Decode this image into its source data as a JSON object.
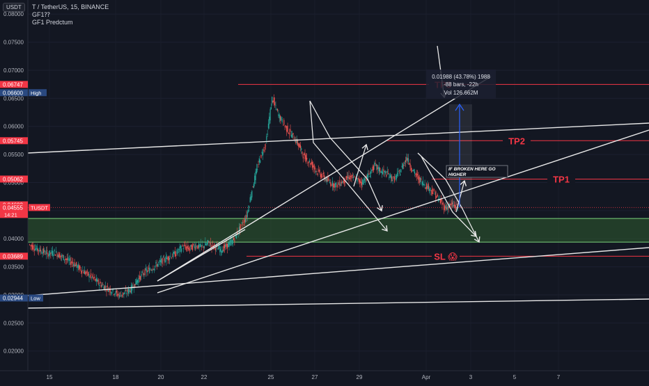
{
  "header": {
    "currency": "USDT",
    "symbol_line": "T / TetherUS, 15, BINANCE",
    "indicator1": "GF1⁇",
    "indicator2": "GF1 Predctum"
  },
  "colors": {
    "background": "#131722",
    "up": "#26a69a",
    "down": "#ef5350",
    "red_line": "#f23645",
    "green_zone": "#2f5d2f",
    "green_border": "#7bd37b",
    "white_line": "#e8e8e8",
    "blue_arrow": "#2962ff",
    "blue_label": "#2a4980"
  },
  "chart_data": {
    "type": "candlestick",
    "price_axis": {
      "ticks": [
        "0.08000",
        "0.07500",
        "0.07000",
        "0.06500",
        "0.06000",
        "0.05500",
        "0.05000",
        "0.04500",
        "0.04000",
        "0.03500",
        "0.03000",
        "0.02500",
        "0.02000"
      ],
      "range": [
        0.0165,
        0.0825
      ]
    },
    "time_axis": {
      "ticks": [
        "15",
        "18",
        "20",
        "22",
        "25",
        "27",
        "29",
        "Apr",
        "3",
        "5",
        "7"
      ],
      "range": [
        "Mar 14 12:00",
        "Apr 8 12:00"
      ]
    },
    "price_labels": [
      {
        "value": "0.06747",
        "kind": "red"
      },
      {
        "value": "0.06600",
        "kind": "blue",
        "tag": "High"
      },
      {
        "value": "0.05745",
        "kind": "red"
      },
      {
        "value": "0.05062",
        "kind": "red"
      },
      {
        "value": "0.04603",
        "kind": "red"
      },
      {
        "value": "0.04555",
        "kind": "red",
        "tag": "TUSDT",
        "sub": "14:21"
      },
      {
        "value": "0.03689",
        "kind": "red"
      },
      {
        "value": "0.02944",
        "kind": "blue",
        "tag": "Low"
      }
    ],
    "levels": [
      {
        "label": "TP3",
        "price": 0.06747
      },
      {
        "label": "TP2",
        "price": 0.05745
      },
      {
        "label": "TP1",
        "price": 0.05062
      },
      {
        "label": "SL 😱",
        "price": 0.03689
      }
    ],
    "demand_zone": {
      "top": 0.0436,
      "bottom": 0.0394
    },
    "annotation": "IF BROKEN HERE GO HIGHER",
    "measure": {
      "line1": "0.01988 (43.78%) 1988",
      "line2": "-88 bars, -22h",
      "line3": "Vol 126.662M"
    },
    "price_path": [
      [
        0,
        0.039
      ],
      [
        1,
        0.0383
      ],
      [
        2,
        0.0378
      ],
      [
        3,
        0.0373
      ],
      [
        4,
        0.0376
      ],
      [
        5,
        0.0369
      ],
      [
        6,
        0.0362
      ],
      [
        7,
        0.0356
      ],
      [
        8,
        0.0346
      ],
      [
        9,
        0.0338
      ],
      [
        10,
        0.033
      ],
      [
        11,
        0.032
      ],
      [
        12,
        0.0313
      ],
      [
        13,
        0.0307
      ],
      [
        14,
        0.03
      ],
      [
        15,
        0.0303
      ],
      [
        16,
        0.0311
      ],
      [
        17,
        0.0327
      ],
      [
        18,
        0.034
      ],
      [
        19,
        0.0346
      ],
      [
        20,
        0.0354
      ],
      [
        21,
        0.0362
      ],
      [
        22,
        0.0368
      ],
      [
        23,
        0.0374
      ],
      [
        24,
        0.0386
      ],
      [
        25,
        0.0382
      ],
      [
        26,
        0.0388
      ],
      [
        27,
        0.0385
      ],
      [
        28,
        0.0392
      ],
      [
        29,
        0.0386
      ],
      [
        30,
        0.038
      ],
      [
        31,
        0.0388
      ],
      [
        32,
        0.0398
      ],
      [
        33,
        0.042
      ],
      [
        34,
        0.044
      ],
      [
        35,
        0.0495
      ],
      [
        36,
        0.054
      ],
      [
        37,
        0.057
      ],
      [
        38,
        0.065
      ],
      [
        39,
        0.062
      ],
      [
        40,
        0.06
      ],
      [
        41,
        0.0585
      ],
      [
        42,
        0.057
      ],
      [
        43,
        0.0545
      ],
      [
        44,
        0.0535
      ],
      [
        45,
        0.052
      ],
      [
        46,
        0.051
      ],
      [
        47,
        0.05
      ],
      [
        48,
        0.0495
      ],
      [
        49,
        0.0502
      ],
      [
        50,
        0.051
      ],
      [
        51,
        0.0506
      ],
      [
        52,
        0.05
      ],
      [
        53,
        0.0512
      ],
      [
        54,
        0.053
      ],
      [
        55,
        0.052
      ],
      [
        56,
        0.0515
      ],
      [
        57,
        0.0505
      ],
      [
        58,
        0.052
      ],
      [
        59,
        0.0545
      ],
      [
        60,
        0.052
      ],
      [
        61,
        0.0505
      ],
      [
        62,
        0.0495
      ],
      [
        63,
        0.0485
      ],
      [
        64,
        0.047
      ],
      [
        65,
        0.0455
      ],
      [
        66,
        0.046
      ],
      [
        67,
        0.0456
      ]
    ]
  }
}
